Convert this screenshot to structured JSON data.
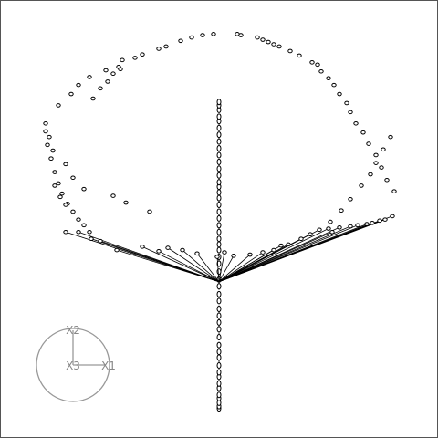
{
  "chart_data": {
    "type": "scatter",
    "projection": "3d",
    "frame": true,
    "grid": false,
    "colors": {
      "points": "#000000",
      "segments": "#000000",
      "axes_gizmo": "#999999",
      "frame": "#555555"
    },
    "axis_triad": {
      "labels": [
        "X2",
        "X3",
        "X1"
      ]
    },
    "series": [
      {
        "role": "ring",
        "marker": "open-circle",
        "x": [
          -0.95,
          -0.93,
          -0.91,
          -0.88,
          -0.84,
          -0.81,
          -0.8,
          -0.77,
          -0.74,
          -0.71,
          -0.62,
          -0.58,
          -0.55,
          -0.53,
          -0.51,
          -0.46,
          -0.42,
          -0.38,
          -0.33,
          -0.29,
          -0.21,
          -0.15,
          -0.09,
          -0.03,
          0.1,
          0.12,
          0.21,
          0.24,
          0.27,
          0.3,
          0.33,
          0.39,
          0.44,
          0.51,
          0.54,
          0.56,
          0.6,
          0.63,
          0.66,
          0.7,
          0.72,
          0.75,
          0.79,
          0.82,
          0.86,
          0.89,
          0.92,
          0.96,
          -0.95,
          -0.94,
          -0.92,
          -0.9,
          -0.88,
          -0.86,
          -0.83,
          -0.8,
          -0.77,
          -0.74,
          -0.71,
          -0.69,
          -0.65,
          -0.61,
          -0.58,
          -0.54,
          -0.9,
          -0.87,
          -0.84,
          0.61,
          0.67,
          0.72,
          0.78,
          0.83,
          0.86,
          0.9,
          0.94
        ],
        "y": [
          0.52,
          0.4,
          0.28,
          0.68,
          0.16,
          0.78,
          0.04,
          0.86,
          -0.06,
          0.93,
          0.99,
          -0.12,
          1.02,
          1.08,
          -0.18,
          1.1,
          1.13,
          -0.26,
          1.18,
          1.2,
          1.25,
          1.28,
          1.3,
          1.31,
          1.31,
          1.3,
          1.28,
          1.26,
          1.24,
          1.22,
          1.2,
          1.16,
          1.12,
          1.06,
          1.04,
          0.98,
          0.92,
          0.86,
          0.78,
          0.7,
          0.62,
          0.52,
          0.44,
          0.34,
          0.24,
          0.13,
          0.02,
          -0.08,
          0.45,
          0.33,
          0.21,
          0.09,
          -0.01,
          -0.1,
          -0.19,
          -0.26,
          -0.33,
          -0.38,
          -0.44,
          0.74,
          0.83,
          0.89,
          0.96,
          1.0,
          -0.03,
          -0.13,
          -0.2,
          -0.35,
          -0.25,
          -0.15,
          -0.03,
          0.07,
          0.17,
          0.29,
          0.4
        ]
      },
      {
        "role": "spine",
        "marker": "open-circle",
        "x": [
          0,
          0,
          0,
          0,
          0,
          0,
          0,
          0,
          0,
          0,
          0,
          0,
          0,
          0,
          0,
          0,
          0,
          0,
          0,
          0,
          0,
          0,
          0,
          0,
          0,
          0,
          0,
          0,
          0,
          0,
          0,
          0,
          0,
          0,
          0,
          0,
          0,
          0,
          0,
          0,
          0,
          0,
          0,
          0,
          0,
          0,
          0,
          0,
          0,
          0
        ],
        "y": [
          -2.0,
          -1.98,
          -1.95,
          -1.91,
          -1.88,
          -1.82,
          -1.78,
          -1.72,
          -1.68,
          -1.62,
          -1.55,
          -1.5,
          -1.44,
          -1.37,
          -1.3,
          -1.24,
          -1.18,
          -1.12,
          -1.05,
          -0.99,
          -0.92,
          -0.86,
          -0.79,
          -0.72,
          -0.66,
          -0.6,
          -0.55,
          -0.5,
          -0.44,
          -0.38,
          -0.32,
          -0.26,
          -0.2,
          -0.14,
          -0.09,
          -0.04,
          0.0,
          0.06,
          0.12,
          0.18,
          0.24,
          0.3,
          0.36,
          0.42,
          0.48,
          0.54,
          0.58,
          0.64,
          0.68,
          0.71
        ]
      },
      {
        "role": "fan",
        "marker": "open-circle",
        "hub": [
          0,
          -0.88
        ],
        "x": [
          -0.84,
          -0.77,
          -0.65,
          -0.56,
          -0.42,
          -0.33,
          -0.2,
          -0.12,
          -0.01,
          0.08,
          0.17,
          0.24,
          0.3,
          0.38,
          0.45,
          0.5,
          0.55,
          0.6,
          0.66,
          0.72,
          0.76,
          0.81,
          0.84,
          0.88,
          0.91,
          0.95,
          -0.7,
          -0.28,
          0.03,
          0.34,
          0.62
        ],
        "y": [
          -0.44,
          -0.44,
          -0.52,
          -0.6,
          -0.57,
          -0.61,
          -0.6,
          -0.63,
          -0.66,
          -0.65,
          -0.64,
          -0.62,
          -0.6,
          -0.55,
          -0.5,
          -0.46,
          -0.42,
          -0.41,
          -0.4,
          -0.39,
          -0.38,
          -0.37,
          -0.36,
          -0.34,
          -0.33,
          -0.3,
          -0.5,
          -0.58,
          -0.62,
          -0.56,
          -0.44
        ]
      }
    ],
    "xlim": [
      -1.1,
      1.1
    ],
    "ylim": [
      -2.1,
      1.45
    ]
  }
}
